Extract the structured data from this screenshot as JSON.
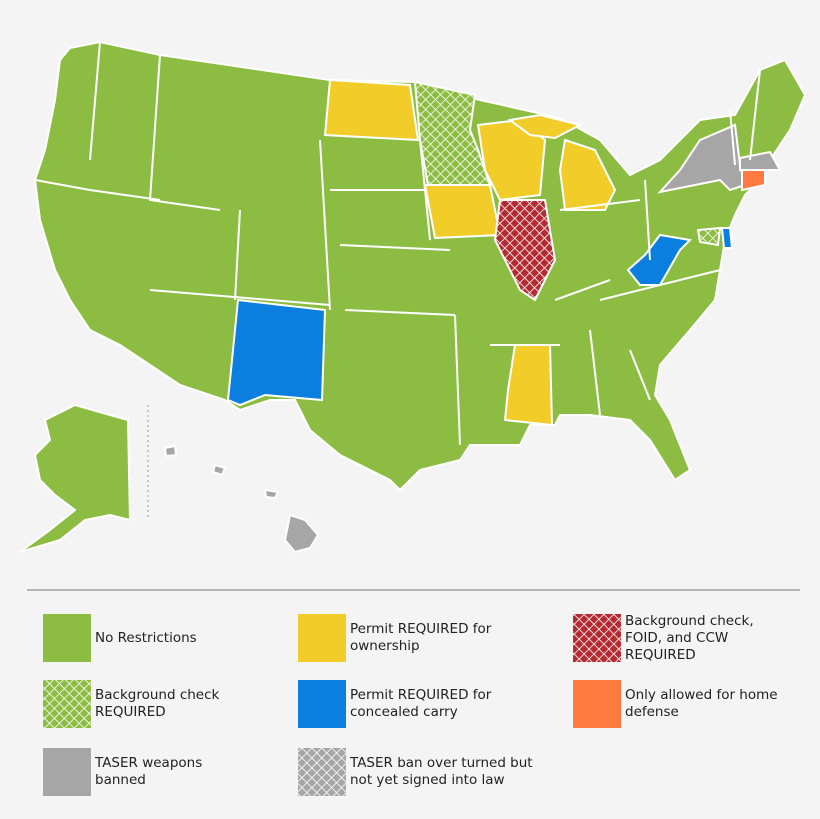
{
  "legend": {
    "items": [
      {
        "label": "No Restrictions",
        "color": "#8cbd42",
        "pattern": "solid"
      },
      {
        "label": "Background check REQUIRED",
        "color": "#8cbd42",
        "pattern": "crosshatch"
      },
      {
        "label": "TASER weapons banned",
        "color": "#a6a6a6",
        "pattern": "solid"
      },
      {
        "label": "Permit REQUIRED for ownership",
        "color": "#f2cd2a",
        "pattern": "solid"
      },
      {
        "label": "Permit REQUIRED for concealed carry",
        "color": "#0b7fe0",
        "pattern": "solid"
      },
      {
        "label": "TASER ban over turned but not yet signed into law",
        "color": "#a6a6a6",
        "pattern": "crosshatch"
      },
      {
        "label": "Background check, FOID, and CCW REQUIRED",
        "color": "#b32a30",
        "pattern": "crosshatch"
      },
      {
        "label": "Only allowed for home defense",
        "color": "#ff7b3f",
        "pattern": "solid"
      }
    ]
  }
}
